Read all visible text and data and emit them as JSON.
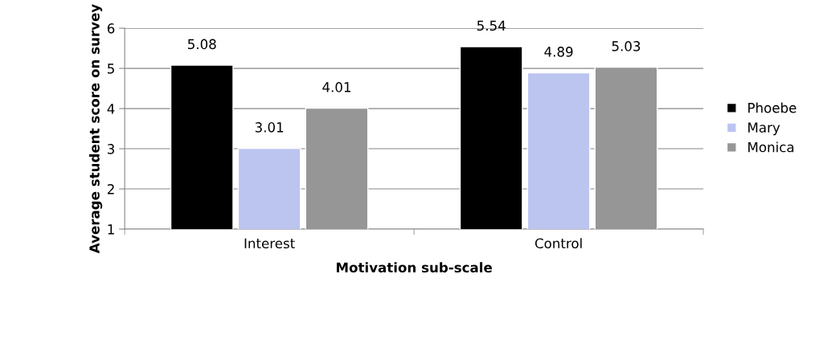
{
  "chart_data": {
    "type": "bar",
    "xlabel": "Motivation sub-scale",
    "ylabel": "Average student score on survey",
    "categories": [
      "Interest",
      "Control"
    ],
    "series": [
      {
        "name": "Phoebe",
        "color": "#000000",
        "values": [
          5.08,
          5.54
        ]
      },
      {
        "name": "Mary",
        "color": "#bcc4f0",
        "values": [
          3.01,
          4.89
        ]
      },
      {
        "name": "Monica",
        "color": "#969696",
        "values": [
          4.01,
          5.03
        ]
      }
    ],
    "ylim": [
      1,
      6
    ],
    "yticks": [
      1,
      2,
      3,
      4,
      5,
      6
    ],
    "grid": "y",
    "legend": "right",
    "data_labels": true
  }
}
